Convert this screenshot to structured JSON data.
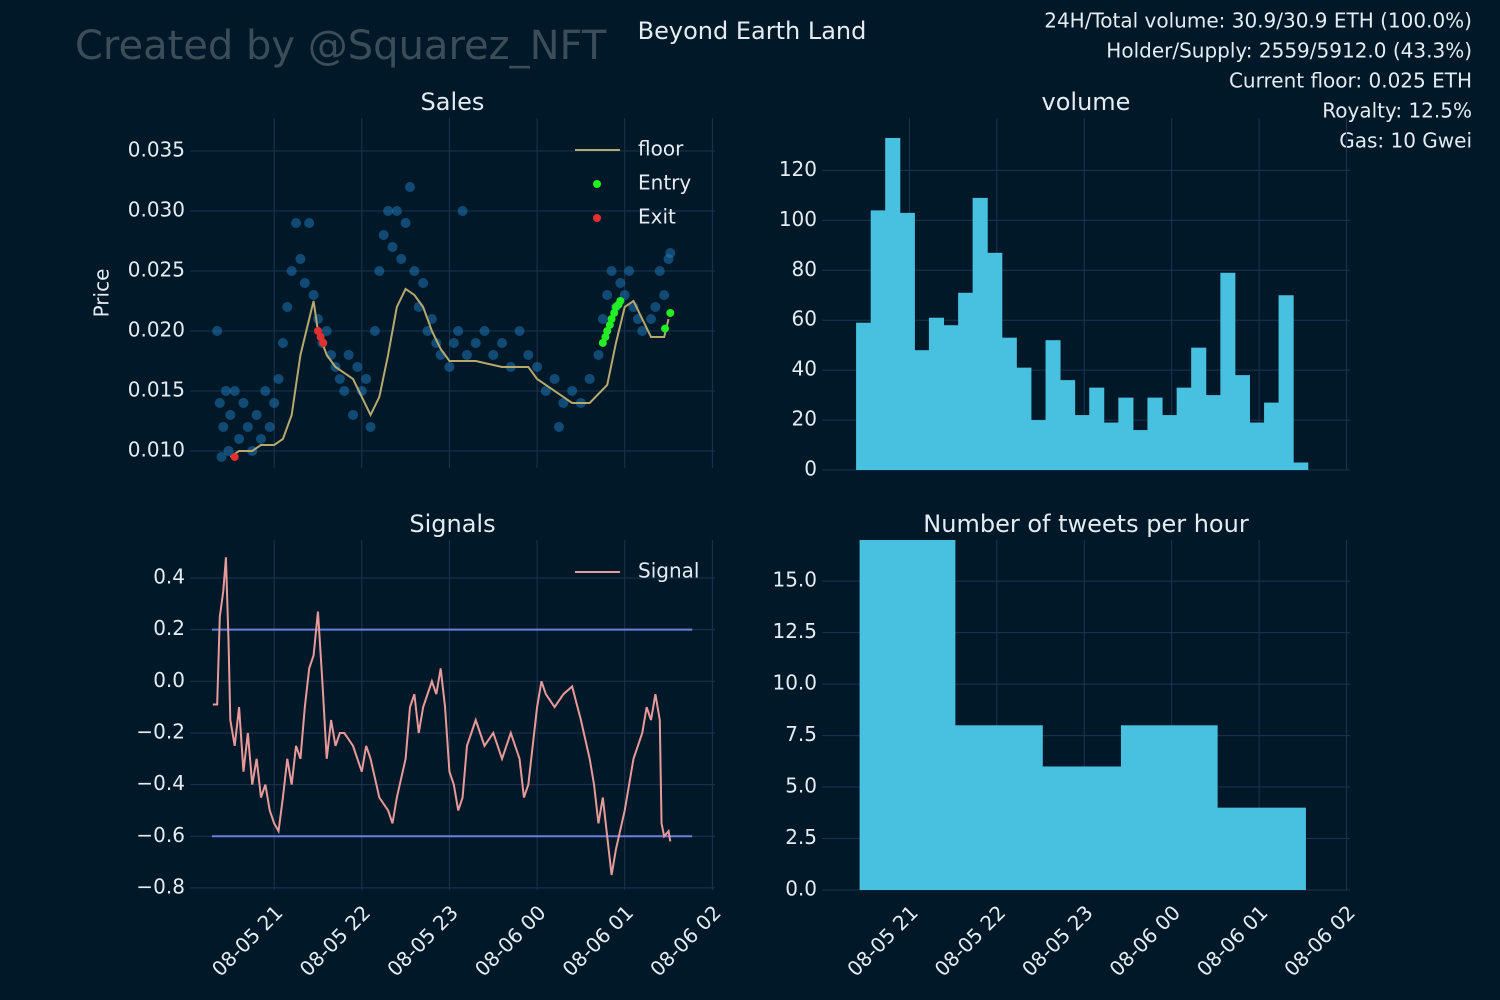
{
  "watermark": "Created by @Squarez_NFT",
  "suptitle": "Beyond Earth Land",
  "info": [
    "24H/Total volume: 30.9/30.9 ETH (100.0%)",
    "Holder/Supply: 2559/5912.0 (43.3%)",
    "Current floor: 0.025 ETH",
    "Royalty: 12.5%",
    "Gas: 10 Gwei"
  ],
  "chart_data": [
    {
      "type": "scatter",
      "title": "Sales",
      "ylabel": "Price",
      "grid": true,
      "legend": "upper right",
      "xlim": [
        20.04,
        26.03
      ],
      "xticks": [
        21,
        22,
        23,
        24,
        25,
        26
      ],
      "ylim": [
        0.00858,
        0.03775
      ],
      "yticks": [
        {
          "value": 0.01,
          "label": "0.010"
        },
        0.015,
        {
          "value": 0.02,
          "label": "0.020"
        },
        0.025,
        {
          "value": 0.03,
          "label": "0.030"
        },
        0.035
      ],
      "points": {
        "color": "#1f77b4",
        "x": [
          20.35,
          20.38,
          20.4,
          20.42,
          20.45,
          20.48,
          20.5,
          20.55,
          20.6,
          20.65,
          20.7,
          20.75,
          20.8,
          20.85,
          20.9,
          20.95,
          21.0,
          21.05,
          21.1,
          21.15,
          21.2,
          21.25,
          21.3,
          21.35,
          21.4,
          21.45,
          21.5,
          21.55,
          21.6,
          21.65,
          21.7,
          21.75,
          21.8,
          21.85,
          21.9,
          21.95,
          22.0,
          22.05,
          22.1,
          22.15,
          22.2,
          22.25,
          22.3,
          22.35,
          22.4,
          22.45,
          22.5,
          22.55,
          22.6,
          22.65,
          22.7,
          22.75,
          22.8,
          22.85,
          22.9,
          23.0,
          23.05,
          23.1,
          23.15,
          23.2,
          23.3,
          23.4,
          23.5,
          23.6,
          23.7,
          23.8,
          23.9,
          24.0,
          24.1,
          24.2,
          24.25,
          24.3,
          24.4,
          24.5,
          24.6,
          24.7,
          24.75,
          24.8,
          24.85,
          24.9,
          24.95,
          25.0,
          25.05,
          25.1,
          25.15,
          25.2,
          25.3,
          25.35,
          25.4,
          25.45,
          25.5,
          25.52
        ],
        "values": [
          0.02,
          0.014,
          0.0095,
          0.012,
          0.015,
          0.01,
          0.013,
          0.015,
          0.011,
          0.014,
          0.012,
          0.01,
          0.013,
          0.011,
          0.015,
          0.012,
          0.014,
          0.016,
          0.019,
          0.022,
          0.025,
          0.029,
          0.026,
          0.024,
          0.029,
          0.023,
          0.021,
          0.019,
          0.02,
          0.018,
          0.017,
          0.016,
          0.015,
          0.018,
          0.013,
          0.017,
          0.015,
          0.016,
          0.012,
          0.02,
          0.025,
          0.028,
          0.03,
          0.027,
          0.03,
          0.026,
          0.029,
          0.032,
          0.025,
          0.022,
          0.024,
          0.02,
          0.021,
          0.019,
          0.018,
          0.017,
          0.019,
          0.02,
          0.03,
          0.018,
          0.019,
          0.02,
          0.018,
          0.019,
          0.017,
          0.02,
          0.018,
          0.017,
          0.015,
          0.016,
          0.012,
          0.014,
          0.015,
          0.014,
          0.016,
          0.018,
          0.021,
          0.023,
          0.025,
          0.022,
          0.024,
          0.023,
          0.025,
          0.022,
          0.021,
          0.02,
          0.021,
          0.022,
          0.025,
          0.023,
          0.026,
          0.0265
        ]
      },
      "series": [
        {
          "name": "floor",
          "kind": "line",
          "color": "#b5a96e",
          "x": [
            20.5,
            20.6,
            20.75,
            20.85,
            21.0,
            21.1,
            21.2,
            21.3,
            21.4,
            21.45,
            21.5,
            21.6,
            21.7,
            21.8,
            21.9,
            22.0,
            22.1,
            22.2,
            22.3,
            22.4,
            22.5,
            22.6,
            22.7,
            22.8,
            22.9,
            23.0,
            23.3,
            23.6,
            23.9,
            24.0,
            24.2,
            24.4,
            24.6,
            24.8,
            24.9,
            25.0,
            25.1,
            25.2,
            25.3,
            25.45,
            25.5
          ],
          "values": [
            0.0095,
            0.01,
            0.01,
            0.0105,
            0.0105,
            0.011,
            0.013,
            0.018,
            0.021,
            0.0225,
            0.02,
            0.018,
            0.017,
            0.0165,
            0.016,
            0.0145,
            0.013,
            0.0145,
            0.018,
            0.022,
            0.0235,
            0.023,
            0.022,
            0.02,
            0.0185,
            0.0175,
            0.0175,
            0.017,
            0.017,
            0.016,
            0.015,
            0.014,
            0.014,
            0.0155,
            0.019,
            0.022,
            0.0225,
            0.021,
            0.0195,
            0.0195,
            0.021
          ]
        },
        {
          "name": "Entry",
          "kind": "points",
          "color": "#22ee22",
          "x": [
            24.75,
            24.78,
            24.8,
            24.83,
            24.85,
            24.88,
            24.9,
            24.93,
            24.95,
            25.46,
            25.52
          ],
          "values": [
            0.019,
            0.0195,
            0.02,
            0.0205,
            0.021,
            0.0215,
            0.022,
            0.0222,
            0.0225,
            0.0202,
            0.0215
          ]
        },
        {
          "name": "Exit",
          "kind": "points",
          "color": "#e03030",
          "x": [
            20.55,
            21.5,
            21.53,
            21.56
          ],
          "values": [
            0.0095,
            0.02,
            0.0195,
            0.019
          ]
        }
      ]
    },
    {
      "type": "histogram",
      "title": "volume",
      "grid": true,
      "color": "#48c1e1",
      "xlim": [
        20.0,
        26.04
      ],
      "xticks": [
        21,
        22,
        23,
        24,
        25,
        26
      ],
      "ylim": [
        0,
        141
      ],
      "yticks": [
        0,
        20,
        40,
        60,
        80,
        100,
        120
      ],
      "bins": [
        20.39,
        20.557,
        20.723,
        20.89,
        21.057,
        21.223,
        21.39,
        21.557,
        21.723,
        21.89,
        22.057,
        22.223,
        22.39,
        22.557,
        22.723,
        22.89,
        23.057,
        23.223,
        23.39,
        23.557,
        23.723,
        23.89,
        24.057,
        24.223,
        24.39,
        24.557,
        24.723,
        24.89,
        25.057,
        25.223,
        25.39,
        25.557
      ],
      "values": [
        59,
        104,
        133,
        103,
        48,
        61,
        58,
        71,
        109,
        87,
        53,
        41,
        20,
        52,
        36,
        22,
        33,
        19,
        29,
        16,
        29,
        22,
        33,
        49,
        30,
        79,
        38,
        19,
        27,
        70,
        3
      ]
    },
    {
      "type": "line",
      "title": "Signals",
      "grid": true,
      "legend": "upper right",
      "xlim": [
        20.04,
        26.03
      ],
      "xticks": [
        {
          "value": 21,
          "label": "08-05 21"
        },
        {
          "value": 22,
          "label": "08-05 22"
        },
        {
          "value": 23,
          "label": "08-05 23"
        },
        {
          "value": 24,
          "label": "08-06 00"
        },
        {
          "value": 25,
          "label": "08-06 01"
        },
        {
          "value": 26,
          "label": "08-06 02"
        }
      ],
      "ylim": [
        -0.808,
        0.547
      ],
      "yticks": [
        {
          "value": -0.8,
          "label": "−0.8"
        },
        {
          "value": -0.6,
          "label": "−0.6"
        },
        {
          "value": -0.4,
          "label": "−0.4"
        },
        {
          "value": -0.2,
          "label": "−0.2"
        },
        {
          "value": 0,
          "label": "0.0"
        },
        0.2,
        0.4
      ],
      "hlines": [
        0.2,
        -0.6
      ],
      "hline_x": [
        20.29,
        25.77
      ],
      "hline_color": "#6a7ee0",
      "series": [
        {
          "name": "Signal",
          "color": "#e79a9a",
          "x": [
            20.3,
            20.35,
            20.38,
            20.42,
            20.45,
            20.48,
            20.5,
            20.55,
            20.6,
            20.65,
            20.7,
            20.75,
            20.8,
            20.85,
            20.9,
            20.95,
            21.0,
            21.05,
            21.1,
            21.15,
            21.2,
            21.25,
            21.3,
            21.35,
            21.4,
            21.45,
            21.5,
            21.55,
            21.6,
            21.65,
            21.7,
            21.75,
            21.8,
            21.9,
            22.0,
            22.05,
            22.1,
            22.2,
            22.3,
            22.35,
            22.4,
            22.5,
            22.55,
            22.6,
            22.65,
            22.7,
            22.8,
            22.85,
            22.9,
            22.95,
            23.0,
            23.05,
            23.1,
            23.15,
            23.2,
            23.3,
            23.4,
            23.5,
            23.6,
            23.7,
            23.8,
            23.85,
            23.9,
            24.0,
            24.05,
            24.1,
            24.2,
            24.3,
            24.4,
            24.5,
            24.6,
            24.65,
            24.7,
            24.75,
            24.8,
            24.85,
            24.9,
            25.0,
            25.05,
            25.1,
            25.2,
            25.25,
            25.3,
            25.35,
            25.4,
            25.42,
            25.45,
            25.5,
            25.52
          ],
          "values": [
            -0.09,
            -0.09,
            0.25,
            0.35,
            0.48,
            0.15,
            -0.15,
            -0.25,
            -0.1,
            -0.35,
            -0.2,
            -0.4,
            -0.3,
            -0.45,
            -0.4,
            -0.5,
            -0.55,
            -0.58,
            -0.45,
            -0.3,
            -0.4,
            -0.25,
            -0.3,
            -0.1,
            0.05,
            0.1,
            0.27,
            0,
            -0.3,
            -0.15,
            -0.25,
            -0.2,
            -0.2,
            -0.25,
            -0.35,
            -0.25,
            -0.3,
            -0.45,
            -0.5,
            -0.55,
            -0.45,
            -0.3,
            -0.1,
            -0.05,
            -0.2,
            -0.1,
            0,
            -0.05,
            0.05,
            -0.1,
            -0.35,
            -0.4,
            -0.5,
            -0.45,
            -0.25,
            -0.15,
            -0.25,
            -0.2,
            -0.3,
            -0.2,
            -0.3,
            -0.45,
            -0.4,
            -0.1,
            0,
            -0.05,
            -0.1,
            -0.05,
            -0.02,
            -0.15,
            -0.3,
            -0.4,
            -0.55,
            -0.45,
            -0.6,
            -0.75,
            -0.65,
            -0.5,
            -0.4,
            -0.3,
            -0.2,
            -0.1,
            -0.15,
            -0.05,
            -0.15,
            -0.55,
            -0.6,
            -0.58,
            -0.62
          ]
        }
      ]
    },
    {
      "type": "histogram",
      "title": "Number of tweets per hour",
      "grid": true,
      "color": "#48c1e1",
      "xlim": [
        20.0,
        26.04
      ],
      "xticks": [
        {
          "value": 21,
          "label": "08-05 21"
        },
        {
          "value": 22,
          "label": "08-05 22"
        },
        {
          "value": 23,
          "label": "08-05 23"
        },
        {
          "value": 24,
          "label": "08-06 00"
        },
        {
          "value": 25,
          "label": "08-06 01"
        },
        {
          "value": 26,
          "label": "08-06 02"
        }
      ],
      "ylim": [
        0,
        17
      ],
      "yticks": [
        {
          "value": 0,
          "label": "0.0"
        },
        2.5,
        {
          "value": 5,
          "label": "5.0"
        },
        7.5,
        {
          "value": 10,
          "label": "10.0"
        },
        12.5,
        {
          "value": 15,
          "label": "15.0"
        }
      ],
      "bins": [
        20.43,
        21.52,
        22.52,
        23.42,
        24.52,
        25.53
      ],
      "values": [
        17,
        8,
        6,
        8,
        4
      ]
    }
  ]
}
